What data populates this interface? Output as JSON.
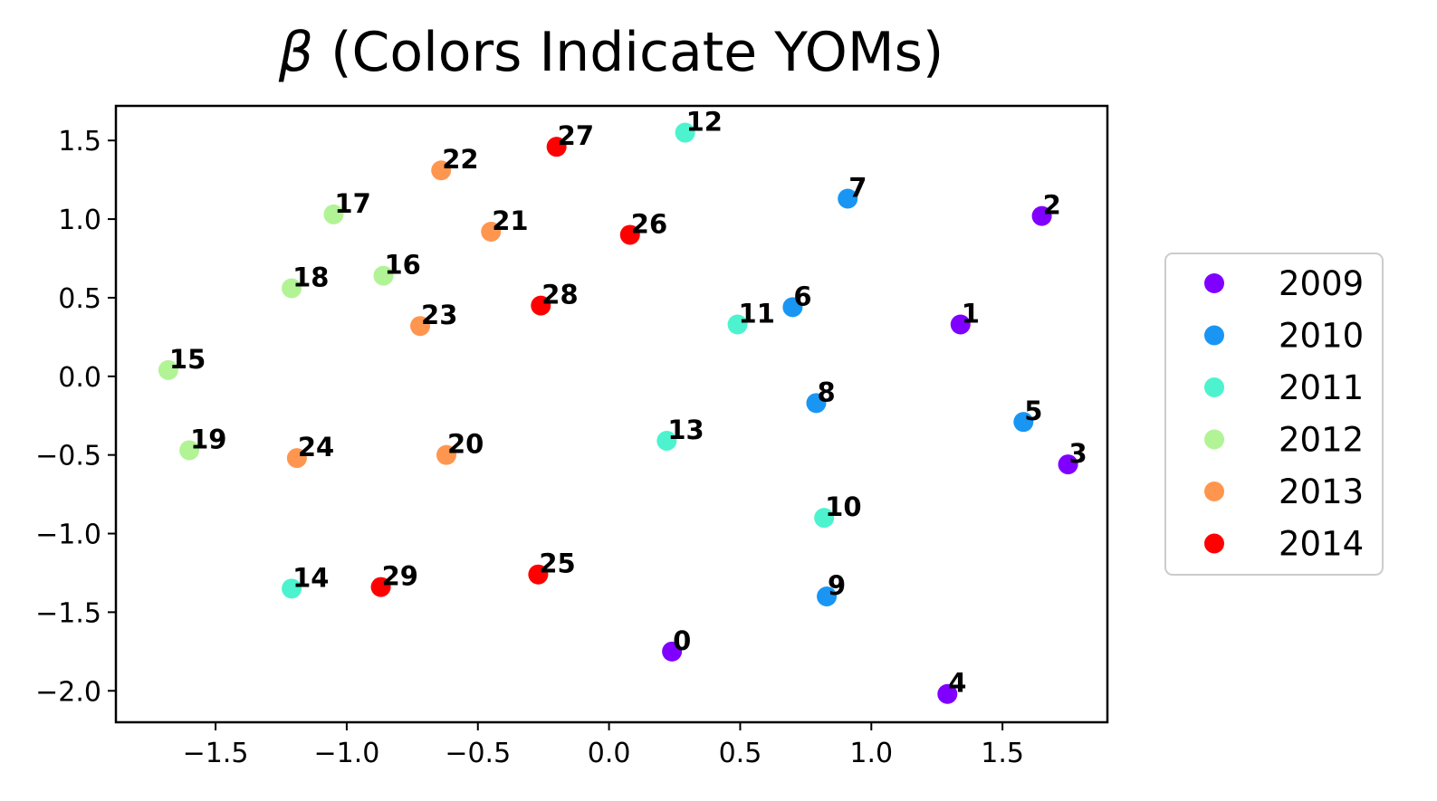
{
  "chart_data": {
    "type": "scatter",
    "title_symbol": "β",
    "title_text": " (Colors Indicate YOMs)",
    "xlabel": "",
    "ylabel": "",
    "xlim": [
      -1.88,
      1.9
    ],
    "ylim": [
      -2.2,
      1.72
    ],
    "xticks": [
      -1.5,
      -1.0,
      -0.5,
      0.0,
      0.5,
      1.0,
      1.5
    ],
    "xtick_labels": [
      "−1.5",
      "−1.0",
      "−0.5",
      "0.0",
      "0.5",
      "1.0",
      "1.5"
    ],
    "yticks": [
      1.5,
      1.0,
      0.5,
      0.0,
      -0.5,
      -1.0,
      -1.5,
      -2.0
    ],
    "ytick_labels": [
      "1.5",
      "1.0",
      "0.5",
      "0.0",
      "−0.5",
      "−1.0",
      "−1.5",
      "−2.0"
    ],
    "legend_position": "right",
    "series": [
      {
        "name": "2009",
        "color": "#8000ff",
        "points": [
          {
            "label": "0",
            "x": 0.24,
            "y": -1.75
          },
          {
            "label": "1",
            "x": 1.34,
            "y": 0.33
          },
          {
            "label": "2",
            "x": 1.65,
            "y": 1.02
          },
          {
            "label": "3",
            "x": 1.75,
            "y": -0.56
          },
          {
            "label": "4",
            "x": 1.29,
            "y": -2.02
          }
        ]
      },
      {
        "name": "2010",
        "color": "#1996f3",
        "points": [
          {
            "label": "5",
            "x": 1.58,
            "y": -0.29
          },
          {
            "label": "6",
            "x": 0.7,
            "y": 0.44
          },
          {
            "label": "7",
            "x": 0.91,
            "y": 1.13
          },
          {
            "label": "8",
            "x": 0.79,
            "y": -0.17
          },
          {
            "label": "9",
            "x": 0.83,
            "y": -1.4
          }
        ]
      },
      {
        "name": "2011",
        "color": "#4df3ce",
        "points": [
          {
            "label": "10",
            "x": 0.82,
            "y": -0.9
          },
          {
            "label": "11",
            "x": 0.49,
            "y": 0.33
          },
          {
            "label": "12",
            "x": 0.29,
            "y": 1.55
          },
          {
            "label": "13",
            "x": 0.22,
            "y": -0.41
          },
          {
            "label": "14",
            "x": -1.21,
            "y": -1.35
          }
        ]
      },
      {
        "name": "2012",
        "color": "#b2f396",
        "points": [
          {
            "label": "15",
            "x": -1.68,
            "y": 0.04
          },
          {
            "label": "16",
            "x": -0.86,
            "y": 0.64
          },
          {
            "label": "17",
            "x": -1.05,
            "y": 1.03
          },
          {
            "label": "18",
            "x": -1.21,
            "y": 0.56
          },
          {
            "label": "19",
            "x": -1.6,
            "y": -0.47
          }
        ]
      },
      {
        "name": "2013",
        "color": "#ff964f",
        "points": [
          {
            "label": "20",
            "x": -0.62,
            "y": -0.5
          },
          {
            "label": "21",
            "x": -0.45,
            "y": 0.92
          },
          {
            "label": "22",
            "x": -0.64,
            "y": 1.31
          },
          {
            "label": "23",
            "x": -0.72,
            "y": 0.32
          },
          {
            "label": "24",
            "x": -1.19,
            "y": -0.52
          }
        ]
      },
      {
        "name": "2014",
        "color": "#ff0000",
        "points": [
          {
            "label": "25",
            "x": -0.27,
            "y": -1.26
          },
          {
            "label": "26",
            "x": 0.08,
            "y": 0.9
          },
          {
            "label": "27",
            "x": -0.2,
            "y": 1.46
          },
          {
            "label": "28",
            "x": -0.26,
            "y": 0.45
          },
          {
            "label": "29",
            "x": -0.87,
            "y": -1.34
          }
        ]
      }
    ]
  }
}
